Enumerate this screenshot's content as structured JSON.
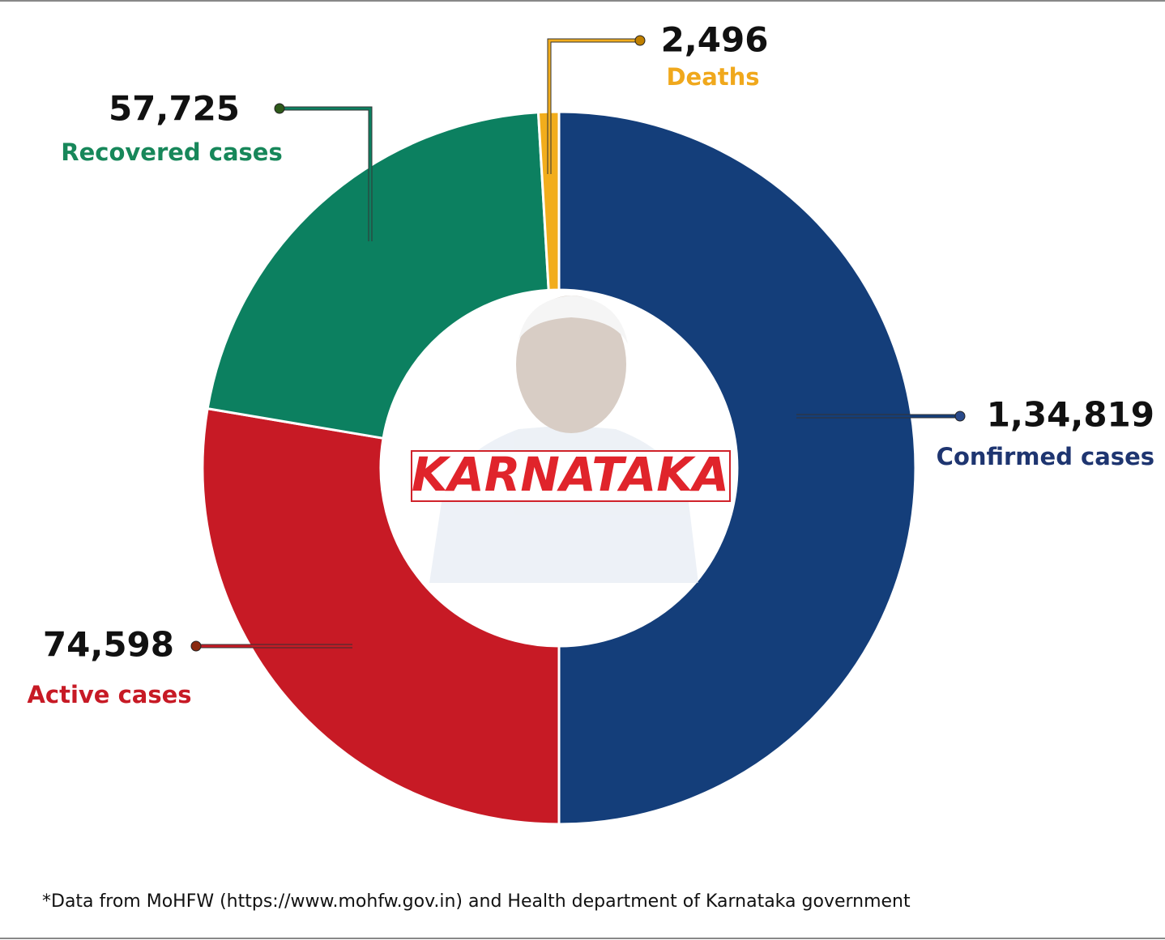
{
  "chart_data": {
    "type": "pie",
    "donut": true,
    "categories": [
      "Confirmed cases",
      "Active cases",
      "Recovered cases",
      "Deaths"
    ],
    "values": [
      134819,
      74598,
      57725,
      2496
    ],
    "value_labels": [
      "1,34,819",
      "74,598",
      "57,725",
      "2,496"
    ],
    "colors": [
      "#143e7a",
      "#c71a25",
      "#0c8060",
      "#f2ad1c"
    ],
    "center_label": "KARNATAKA",
    "footnote": "*Data from MoHFW (https://www.mohfw.gov.in) and Health department of Karnataka government"
  }
}
